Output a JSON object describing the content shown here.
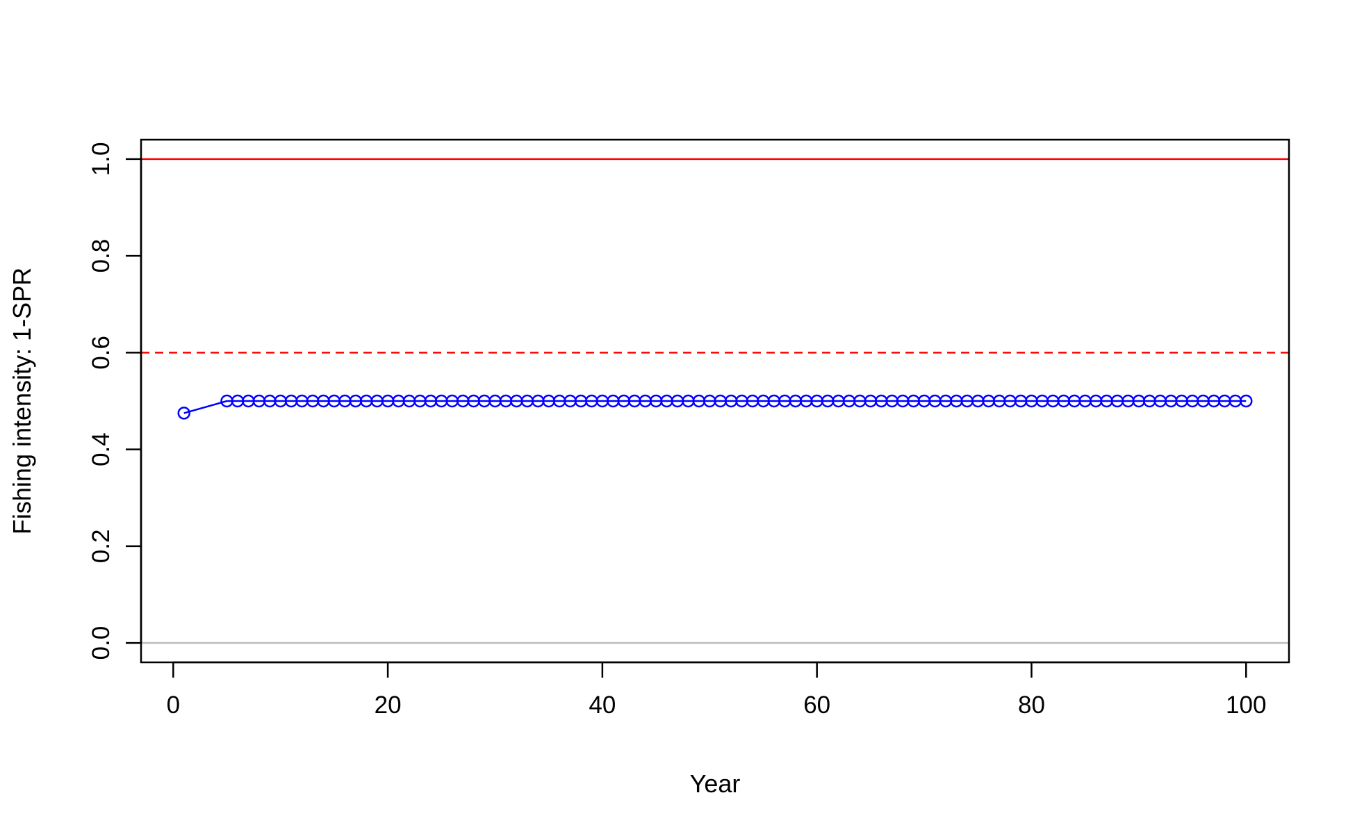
{
  "chart_data": {
    "type": "line",
    "title": "",
    "xlabel": "Year",
    "ylabel": "Fishing intensity: 1-SPR",
    "xlim": [
      -3,
      104
    ],
    "ylim": [
      -0.04,
      1.04
    ],
    "grid": false,
    "legend": "none",
    "x_ticks": [
      0,
      20,
      40,
      60,
      80,
      100
    ],
    "x_tick_labels": [
      "0",
      "20",
      "40",
      "60",
      "80",
      "100"
    ],
    "y_ticks": [
      0,
      0.2,
      0.4,
      0.6,
      0.8,
      1.0
    ],
    "y_tick_labels": [
      "0.0",
      "0.2",
      "0.4",
      "0.6",
      "0.8",
      "1.0"
    ],
    "reference_lines": [
      {
        "y": 1.0,
        "color": "#ff0000",
        "style": "solid"
      },
      {
        "y": 0.6,
        "color": "#ff0000",
        "style": "dashed"
      },
      {
        "y": 0.0,
        "color": "#bebebe",
        "style": "solid"
      }
    ],
    "series": [
      {
        "color": "#0000ff",
        "marker": "open-circle",
        "segments": [
          {
            "x": [
              1,
              5
            ],
            "y": [
              0.475,
              0.5
            ]
          },
          {
            "x_start": 5,
            "x_end": 100,
            "y": 0.5
          }
        ]
      }
    ]
  }
}
